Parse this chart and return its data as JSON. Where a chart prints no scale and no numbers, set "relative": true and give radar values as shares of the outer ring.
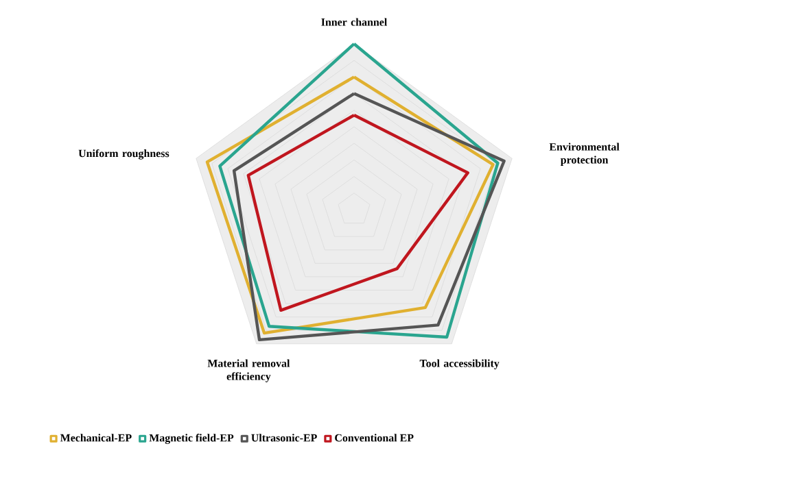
{
  "chart_data": {
    "type": "radar",
    "relative": true,
    "grid": true,
    "legend": "bottom",
    "marker": "none",
    "line_style": "solid",
    "categories": [
      "Inner channel",
      "Environmental protection",
      "Tool accessibility",
      "Material removal efficiency",
      "Uniform roughness"
    ],
    "series": [
      {
        "name": "Mechanical-EP",
        "color": "#e0b030",
        "values": [
          0.8,
          0.88,
          0.73,
          0.92,
          0.93
        ]
      },
      {
        "name": "Magnetic field-EP",
        "color": "#2aa58f",
        "values": [
          1.0,
          0.91,
          0.95,
          0.87,
          0.85
        ]
      },
      {
        "name": "Ultrasonic-EP",
        "color": "#555555",
        "values": [
          0.7,
          0.95,
          0.86,
          0.97,
          0.76
        ]
      },
      {
        "name": "Conventional EP",
        "color": "#c0161e",
        "values": [
          0.57,
          0.72,
          0.44,
          0.75,
          0.67
        ]
      }
    ]
  }
}
